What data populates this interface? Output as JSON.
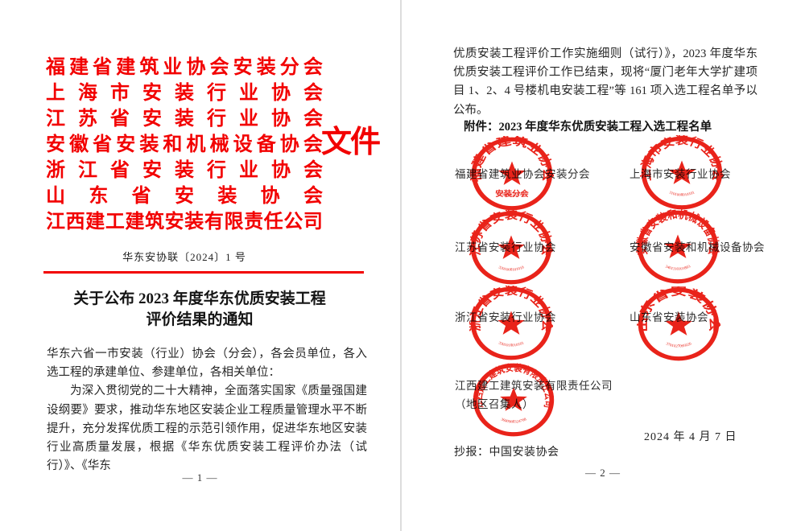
{
  "colors": {
    "header_red": "#f20000",
    "seal_red": "#e8170d",
    "text": "#262626",
    "divider": "#dcdcdc"
  },
  "page1": {
    "header_lines": [
      "福建省建筑业协会安装分会",
      "上海市安装行业协会",
      "江苏省安装行业协会",
      "安徽省安装和机械设备协会",
      "浙江省安装行业协会",
      "山东省安装协会",
      "江西建工建筑安装有限责任公司"
    ],
    "header_suffix": "文件",
    "doc_number": "华东安协联〔2024〕1 号",
    "title_line1": "关于公布 2023 年度华东优质安装工程",
    "title_line2": "评价结果的通知",
    "salutation": "华东六省一市安装（行业）协会（分会），各会员单位，各入选工程的承建单位、参建单位，各相关单位：",
    "body": "为深入贯彻党的二十大精神，全面落实国家《质量强国建设纲要》要求，推动华东地区安装企业工程质量管理水平不断提升，充分发挥优质工程的示范引领作用，促进华东地区安装行业高质量发展，根据《华东优质安装工程评价办法（试行）》、《华东",
    "page_number": "— 1 —"
  },
  "page2": {
    "body": "优质安装工程评价工作实施细则（试行）》，2023 年度华东优质安装工程评价工作已结束，现将“厦门老年大学扩建项目 1、2、4 号楼机电安装工程”等 161 项入选工程名单予以公布。",
    "attachment": "附件：2023 年度华东优质安装工程入选工程名单",
    "seals": [
      {
        "name": "福建省建筑业协会安装分会",
        "arc_text": "福建省建筑业协会",
        "center_text": "安装分会",
        "digits": "3501111001010"
      },
      {
        "name": "上海市安装行业协会",
        "arc_text": "上海市安装行业协会",
        "center_text": "",
        "digits": "3101000010101"
      },
      {
        "name": "江苏省安装行业协会",
        "arc_text": "江苏省安装行业协会",
        "center_text": "",
        "digits": "3201000101010"
      },
      {
        "name": "安徽省安装和机械设备协会",
        "arc_text": "安徽省安装和机械设备协会",
        "center_text": "",
        "digits": "3401110101803"
      },
      {
        "name": "浙江省安装行业协会",
        "arc_text": "浙江省安装行业协会",
        "center_text": "",
        "digits": "3301010010101"
      },
      {
        "name": "山东省安装协会",
        "arc_text": "山东省安装协会",
        "center_text": "",
        "digits": "3701027095026"
      },
      {
        "name": "江西建工建筑安装有限责任公司",
        "arc_text": "江西建工建筑安装有限责任公司",
        "center_text": "",
        "digits": "3600980324708",
        "note": "（地区召集人）"
      }
    ],
    "date": "2024 年 4 月 7 日",
    "cc": "抄报：中国安装协会",
    "page_number": "— 2 —"
  }
}
